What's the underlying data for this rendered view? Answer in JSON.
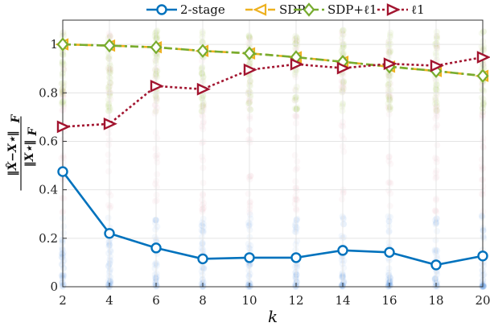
{
  "chart_data": {
    "type": "line",
    "xlabel": "k",
    "ylabel": "||X̂ − X*||_F / ||X*||_F",
    "ylabel_parts": {
      "numerator": "X̂−X⋆",
      "denominator": "X⋆",
      "subscript": "F"
    },
    "x": [
      2,
      4,
      6,
      8,
      10,
      12,
      14,
      16,
      18,
      20
    ],
    "xlim": [
      2,
      20
    ],
    "ylim": [
      0,
      1.1
    ],
    "xticks": [
      "2",
      "4",
      "6",
      "8",
      "10",
      "12",
      "14",
      "16",
      "18",
      "20"
    ],
    "yticks": [
      {
        "value": 0,
        "label": "0"
      },
      {
        "value": 0.2,
        "label": "0.2"
      },
      {
        "value": 0.4,
        "label": "0.4"
      },
      {
        "value": 0.6,
        "label": "0.6"
      },
      {
        "value": 0.8,
        "label": "0.8"
      },
      {
        "value": 1,
        "label": "1"
      }
    ],
    "grid": true,
    "legend_position": "top",
    "series": [
      {
        "name": "2-stage",
        "color": "#0072bd",
        "marker": "circle",
        "dash": "solid",
        "values": [
          0.475,
          0.22,
          0.16,
          0.115,
          0.12,
          0.12,
          0.15,
          0.142,
          0.09,
          0.127
        ]
      },
      {
        "name": "SDP",
        "color": "#edb120",
        "marker": "triangle-left",
        "dash": "dashed",
        "values": [
          1.0,
          0.995,
          0.988,
          0.973,
          0.963,
          0.947,
          0.928,
          0.908,
          0.89,
          0.87
        ]
      },
      {
        "name": "SDP+ℓ1",
        "color": "#77ac30",
        "marker": "diamond",
        "dash": "dashdot",
        "values": [
          1.0,
          0.995,
          0.988,
          0.973,
          0.963,
          0.947,
          0.928,
          0.908,
          0.89,
          0.87
        ]
      },
      {
        "name": "ℓ1",
        "color": "#a2142f",
        "marker": "triangle-right",
        "dash": "dotted",
        "values": [
          0.66,
          0.672,
          0.828,
          0.815,
          0.895,
          0.918,
          0.902,
          0.92,
          0.912,
          0.947
        ]
      }
    ]
  }
}
